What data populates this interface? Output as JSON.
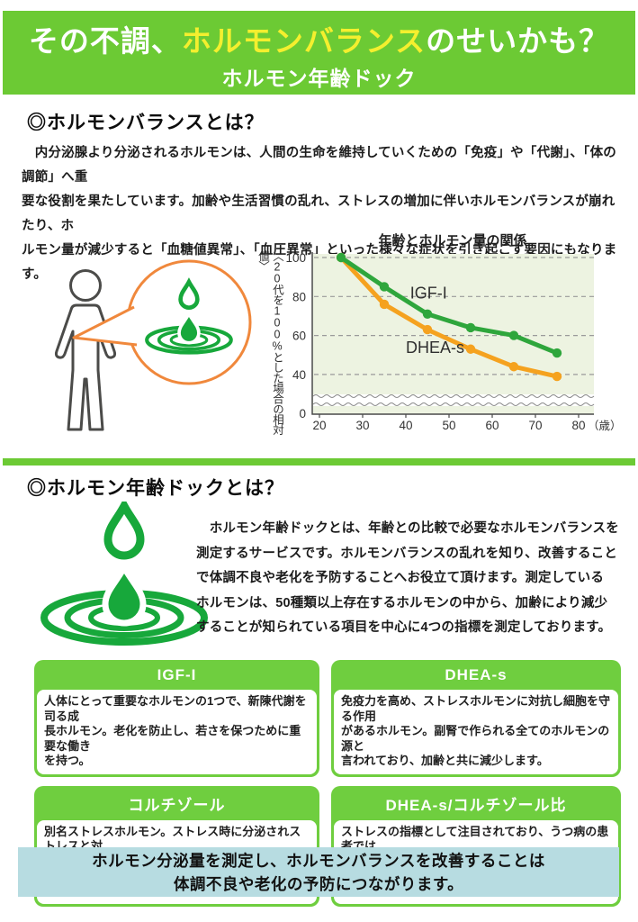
{
  "page": {
    "header": {
      "title_pre": "その不調、",
      "title_highlight": "ホルモンバランス",
      "title_post": "のせいかも？",
      "subtitle": "ホルモン年齢ドック"
    },
    "section1": {
      "heading": "◎ホルモンバランスとは？",
      "body": "　内分泌腺より分泌されるホルモンは、人間の生命を維持していくための「免疫」や「代謝」、「体の調節」へ重\n要な役割を果たしています。加齢や生活習慣の乱れ、ストレスの増加に伴いホルモンバランスが崩れたり、ホ\nルモン量が減少すると「血糖値異常」、「血圧異常」といった様々な症状を引き起こす要因にもなります。"
    },
    "section2": {
      "heading": "◎ホルモン年齢ドックとは？",
      "body": "　ホルモン年齢ドックとは、年齢との比較で必要なホルモンバランスを\n測定するサービスです。ホルモンバランスの乱れを知り、改善すること\nで体調不良や老化を予防することへお役立て頂けます。測定している\nホルモンは、50種類以上存在するホルモンの中から、加齢により減少\nすることが知られている項目を中心に4つの指標を測定しております。"
    },
    "cards": [
      {
        "title": "IGF-I",
        "body": "人体にとって重要なホルモンの1つで、新陳代謝を司る成\n長ホルモン。老化を防止し、若さを保つために重要な働き\nを持つ。"
      },
      {
        "title": "DHEA-s",
        "body": "免疫力を高め、ストレスホルモンに対抗し細胞を守る作用\nがあるホルモン。副腎で作られる全てのホルモンの源と\n言われており、加齢と共に減少します。"
      },
      {
        "title": "コルチゾール",
        "body": "別名ストレスホルモン。ストレス時に分泌されストレスと対\n抗する力の源になります。その他、抗炎症作用などからだ\nにとって大切な働きをしています。"
      },
      {
        "title": "DHEA-s/コルチゾール比",
        "body": "ストレスの指標として注目されており、うつ病の患者では\nコルチゾールが高く、DHEA-sが低い傾向があるためその\n比率が重要なのではないかと考えられています。"
      }
    ],
    "footer_banner": {
      "line1": "ホルモン分泌量を測定し、ホルモンバランスを改善することは",
      "line2": "体調不良や老化の予防につながります。"
    },
    "icons": {
      "person": "person-outline",
      "bubble": "speech-bubble",
      "logo": "droplet-ripple-logo"
    }
  },
  "chart_data": {
    "type": "line",
    "title": "年齢とホルモン量の関係",
    "ylabel": "〈20代を100%とした場合の相対値〉",
    "xlabel_suffix": "（歳）",
    "x": [
      25,
      35,
      45,
      55,
      65,
      75
    ],
    "x_ticks": [
      20,
      30,
      40,
      50,
      60,
      70,
      80
    ],
    "y_ticks": [
      100,
      80,
      60,
      40,
      0
    ],
    "xlim": [
      18,
      82
    ],
    "ylim_display": [
      35,
      100
    ],
    "axis_break": true,
    "grid": "horizontal-dashed",
    "legend_position": "inline-labels",
    "plot_bg": "#edf3e1",
    "series": [
      {
        "name": "IGF-I",
        "color": "#2fa63c",
        "values": [
          100,
          85,
          71,
          64,
          60,
          51
        ],
        "label_pos": {
          "x": 41,
          "y": 79
        }
      },
      {
        "name": "DHEA-s",
        "color": "#f5a21f",
        "values": [
          100,
          76,
          63,
          53,
          44,
          39
        ],
        "label_pos": {
          "x": 40,
          "y": 51
        }
      }
    ]
  },
  "colors": {
    "green_main": "#6cca34",
    "green_card": "#6fce3f",
    "green_logo": "#17a83b",
    "title_yellow": "#f4ef2e",
    "bubble_orange": "#f0883c",
    "banner_blue": "#b7dce1",
    "person_gray": "#4b4b49",
    "text_dark": "#1c1c1c"
  }
}
